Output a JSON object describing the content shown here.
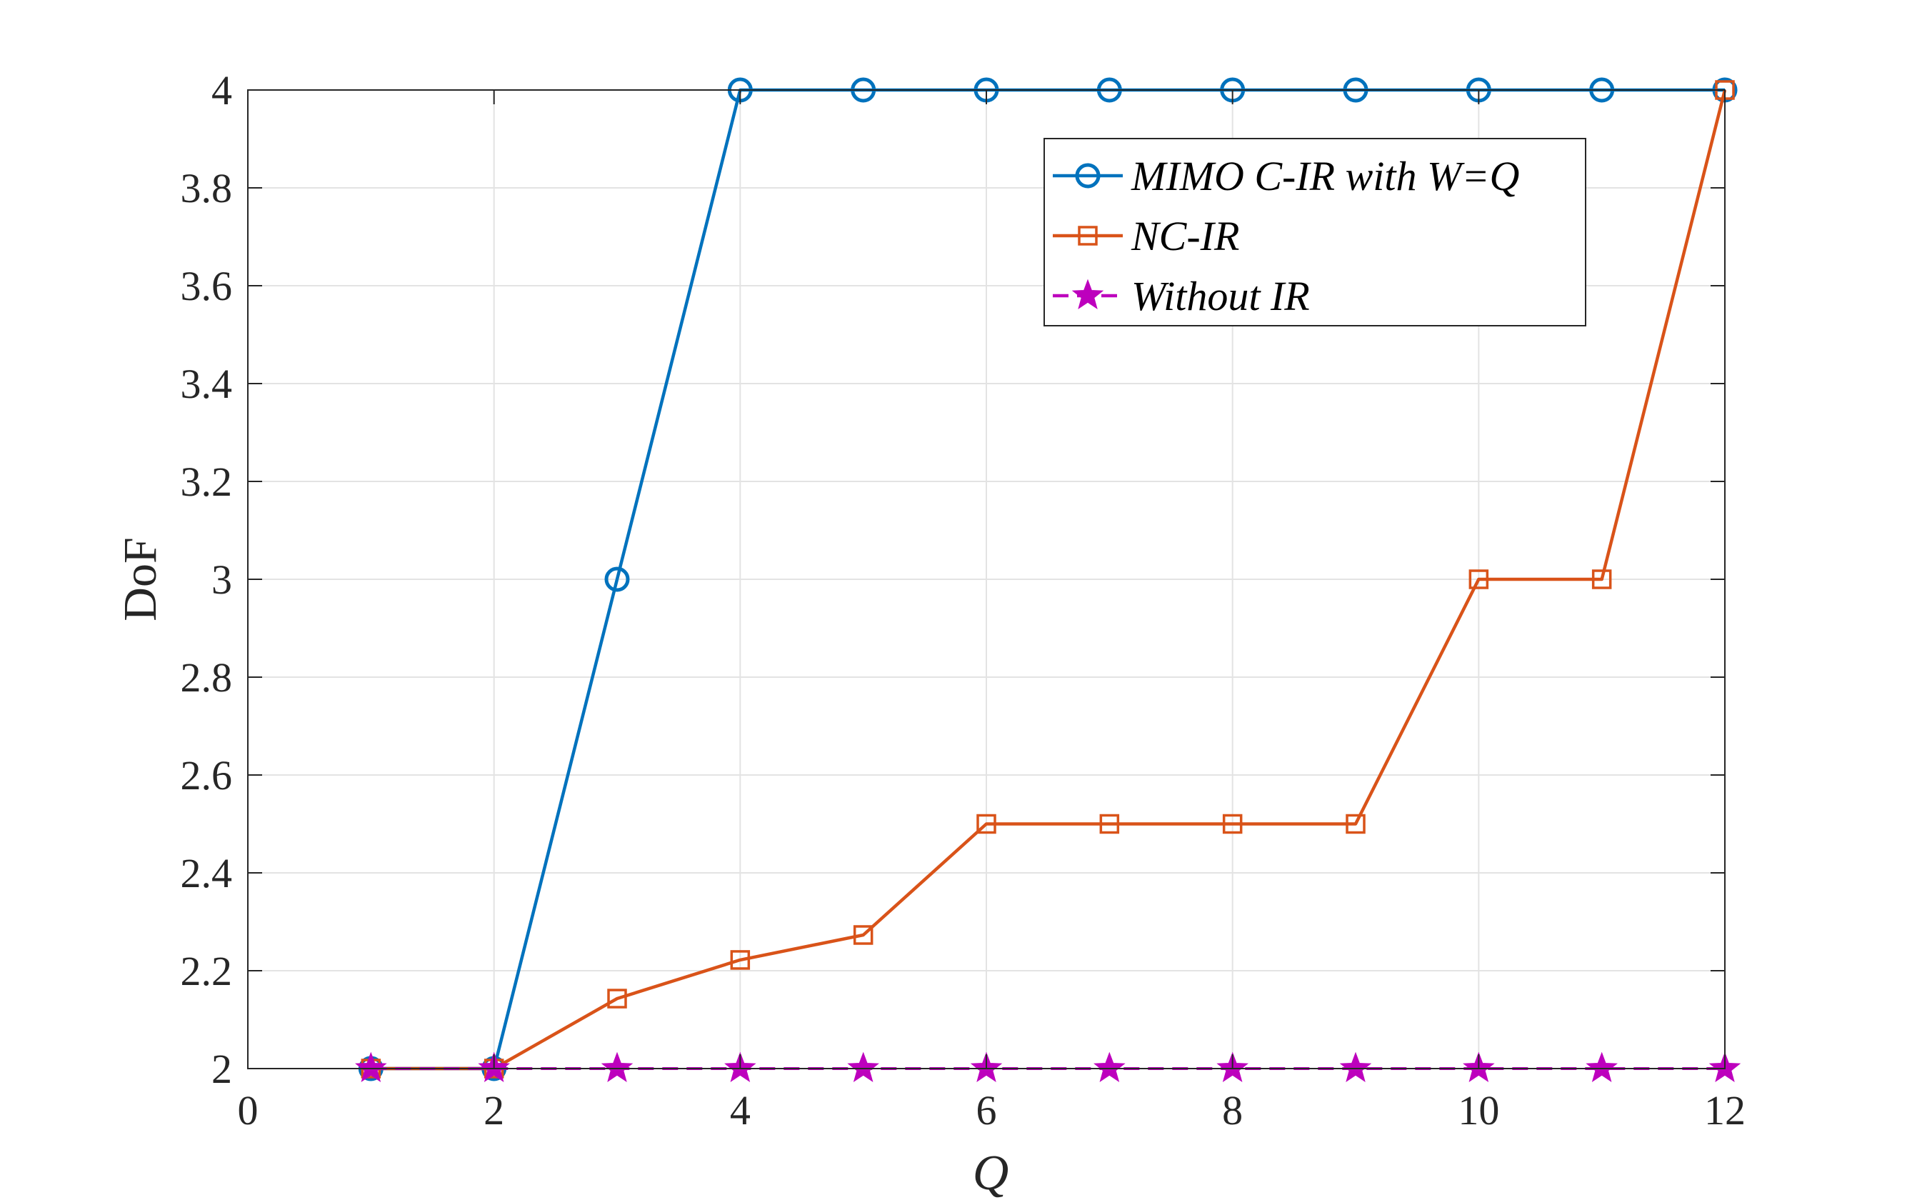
{
  "chart_data": {
    "type": "line",
    "xlabel": "Q",
    "ylabel": "DoF",
    "xlim": [
      0,
      12
    ],
    "ylim": [
      2,
      4
    ],
    "xticks": [
      0,
      2,
      4,
      6,
      8,
      10,
      12
    ],
    "yticks": [
      2,
      2.2,
      2.4,
      2.6,
      2.8,
      3,
      3.2,
      3.4,
      3.6,
      3.8,
      4
    ],
    "grid": true,
    "legend_position": "top-right",
    "series": [
      {
        "name": "MIMO C-IR with W=Q",
        "color": "#0072BD",
        "marker": "circle",
        "line_style": "solid",
        "x": [
          1,
          2,
          3,
          4,
          5,
          6,
          7,
          8,
          9,
          10,
          11,
          12
        ],
        "y": [
          2,
          2,
          3,
          4,
          4,
          4,
          4,
          4,
          4,
          4,
          4,
          4
        ]
      },
      {
        "name": "NC-IR",
        "color": "#D95319",
        "marker": "square",
        "line_style": "solid",
        "x": [
          1,
          2,
          3,
          4,
          5,
          6,
          7,
          8,
          9,
          10,
          11,
          12
        ],
        "y": [
          2,
          2,
          2.143,
          2.222,
          2.273,
          2.5,
          2.5,
          2.5,
          2.5,
          3,
          3,
          4
        ]
      },
      {
        "name": "Without IR",
        "color": "#BD00BD",
        "marker": "star",
        "line_style": "dashed",
        "x": [
          1,
          2,
          3,
          4,
          5,
          6,
          7,
          8,
          9,
          10,
          11,
          12
        ],
        "y": [
          2,
          2,
          2,
          2,
          2,
          2,
          2,
          2,
          2,
          2,
          2,
          2
        ]
      }
    ]
  }
}
